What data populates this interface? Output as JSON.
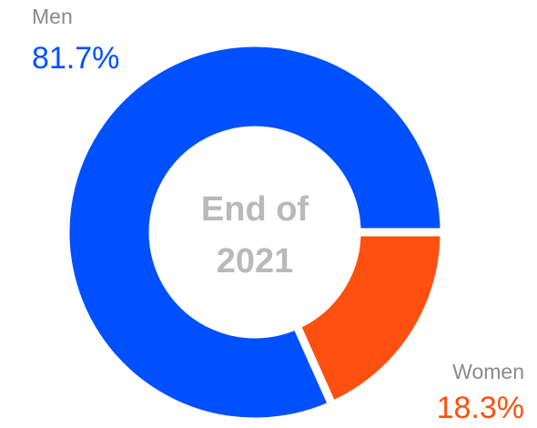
{
  "chart_data": {
    "type": "donut",
    "center_label": [
      "End of",
      "2021"
    ],
    "categories": [
      "Men",
      "Women"
    ],
    "values": [
      81.7,
      18.3
    ],
    "value_labels": [
      "81.7%",
      "18.3%"
    ],
    "colors": [
      "#0050ff",
      "#ff500f"
    ]
  }
}
